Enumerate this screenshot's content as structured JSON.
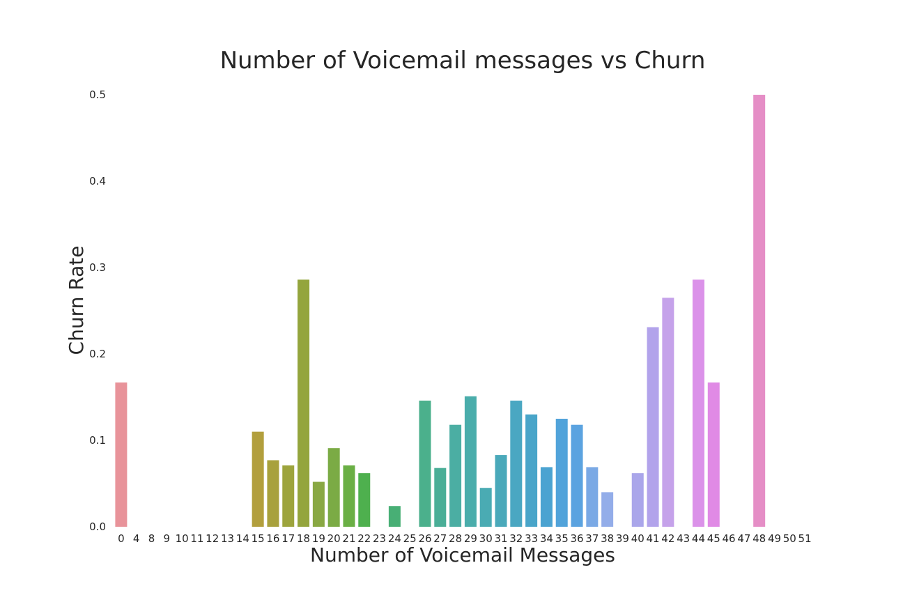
{
  "chart_data": {
    "type": "bar",
    "title": "Number of Voicemail messages vs Churn",
    "xlabel": "Number of Voicemail Messages",
    "ylabel": "Churn Rate",
    "ylim": [
      0,
      0.5
    ],
    "yticks": [
      "0.0",
      "0.1",
      "0.2",
      "0.3",
      "0.4",
      "0.5"
    ],
    "grid": false,
    "legend": "none",
    "categories": [
      "0",
      "4",
      "8",
      "9",
      "10",
      "11",
      "12",
      "13",
      "14",
      "15",
      "16",
      "17",
      "18",
      "19",
      "20",
      "21",
      "22",
      "23",
      "24",
      "25",
      "26",
      "27",
      "28",
      "29",
      "30",
      "31",
      "32",
      "33",
      "34",
      "35",
      "36",
      "37",
      "38",
      "39",
      "40",
      "41",
      "42",
      "43",
      "44",
      "45",
      "46",
      "47",
      "48",
      "49",
      "50",
      "51"
    ],
    "values": [
      0.167,
      0,
      0,
      0,
      0,
      0,
      0,
      0,
      0,
      0.11,
      0.077,
      0.071,
      0.286,
      0.052,
      0.091,
      0.071,
      0.062,
      0,
      0.024,
      0,
      0.146,
      0.068,
      0.118,
      0.151,
      0.045,
      0.083,
      0.146,
      0.13,
      0.069,
      0.125,
      0.118,
      0.069,
      0.04,
      0,
      0.062,
      0.231,
      0.265,
      0,
      0.286,
      0.167,
      0,
      0,
      0.5,
      0,
      0,
      0
    ],
    "colors": [
      "#e8939a",
      "#e6969a",
      "#e5999a",
      "#e49c9a",
      "#e29f9a",
      "#e0a29a",
      "#dea59a",
      "#dca89a",
      "#daab9a",
      "#b29f3d",
      "#a8a13d",
      "#9da43d",
      "#94a53d",
      "#89a843",
      "#7bab45",
      "#6aaf45",
      "#4eb04e",
      "#4ab062",
      "#48af75",
      "#48ad83",
      "#4bb08c",
      "#4aae97",
      "#4baea3",
      "#4aadab",
      "#4aabb3",
      "#4aa9ba",
      "#4aa7c2",
      "#49a5c9",
      "#4ba3d1",
      "#51a3da",
      "#5ba3e0",
      "#7aa9e5",
      "#93ade9",
      "#a3aaea",
      "#aaa6ea",
      "#b2a3eb",
      "#c5a2ea",
      "#d19ee9",
      "#db92e9",
      "#e08ae5",
      "#e28ad8",
      "#e48acd",
      "#e58ec6",
      "#e894c4",
      "#e99ac4",
      "#eaa0c4"
    ]
  }
}
